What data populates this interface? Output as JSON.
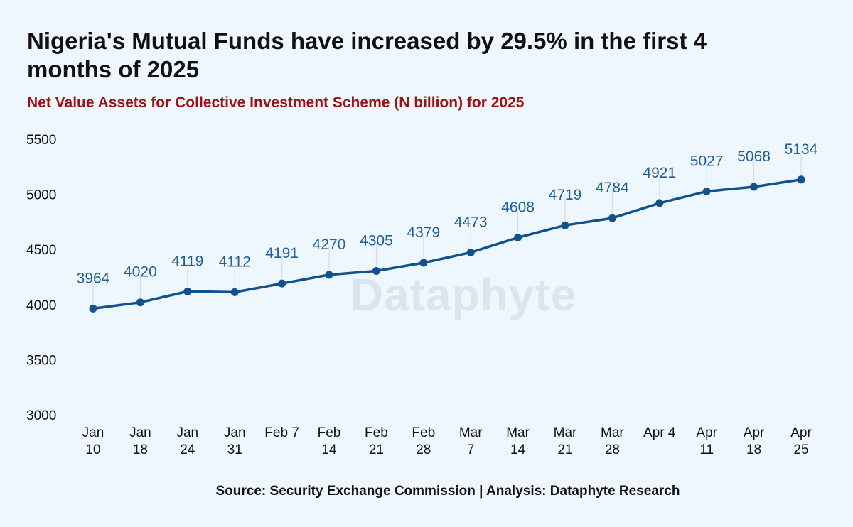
{
  "title": "Nigeria's Mutual Funds have increased by 29.5% in the first 4 months of 2025",
  "subtitle": "Net Value Assets for Collective Investment Scheme (N billion) for 2025",
  "source": "Source: Security Exchange Commission | Analysis: Dataphyte Research",
  "watermark": "Dataphyte",
  "colors": {
    "line": "#11528e",
    "label": "#1f5f9c",
    "subtitle": "#9b1414",
    "background": "#eef6fe"
  },
  "chart_data": {
    "type": "line",
    "title": "Nigeria's Mutual Funds have increased by 29.5% in the first 4 months of 2025",
    "subtitle": "Net Value Assets for Collective Investment Scheme (N billion) for 2025",
    "xlabel": "",
    "ylabel": "",
    "ylim": [
      3000,
      5500
    ],
    "yticks": [
      3000,
      3500,
      4000,
      4500,
      5000,
      5500
    ],
    "grid": false,
    "categories": [
      [
        "Jan",
        "10"
      ],
      [
        "Jan",
        "18"
      ],
      [
        "Jan",
        "24"
      ],
      [
        "Jan",
        "31"
      ],
      [
        "Feb 7"
      ],
      [
        "Feb",
        "14"
      ],
      [
        "Feb",
        "21"
      ],
      [
        "Feb",
        "28"
      ],
      [
        "Mar",
        "7"
      ],
      [
        "Mar",
        "14"
      ],
      [
        "Mar",
        "21"
      ],
      [
        "Mar",
        "28"
      ],
      [
        "Apr 4"
      ],
      [
        "Apr",
        "11"
      ],
      [
        "Apr",
        "18"
      ],
      [
        "Apr",
        "25"
      ]
    ],
    "values": [
      3964,
      4020,
      4119,
      4112,
      4191,
      4270,
      4305,
      4379,
      4473,
      4608,
      4719,
      4784,
      4921,
      5027,
      5068,
      5134
    ]
  }
}
